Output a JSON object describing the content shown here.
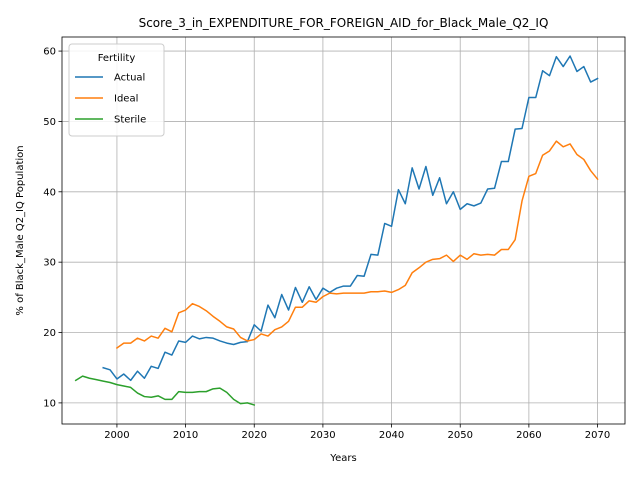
{
  "chart_data": {
    "type": "line",
    "title": "Score_3_in_EXPENDITURE_FOR_FOREIGN_AID_for_Black_Male_Q2_IQ",
    "xlabel": "Years",
    "ylabel": "% of Black_Male Q2_IQ Population",
    "xlim": [
      1992,
      2074
    ],
    "ylim": [
      7,
      62
    ],
    "xticks": [
      2000,
      2010,
      2020,
      2030,
      2040,
      2050,
      2060,
      2070
    ],
    "yticks": [
      10,
      20,
      30,
      40,
      50,
      60
    ],
    "grid": true,
    "legend": {
      "title": "Fertility",
      "placement": "top-left"
    },
    "series": [
      {
        "name": "Actual",
        "color": "#1f77b4",
        "x": [
          1998,
          1999,
          2000,
          2001,
          2002,
          2003,
          2004,
          2005,
          2006,
          2007,
          2008,
          2009,
          2010,
          2011,
          2012,
          2013,
          2014,
          2015,
          2016,
          2017,
          2018,
          2019,
          2020,
          2021,
          2022,
          2023,
          2024,
          2025,
          2026,
          2027,
          2028,
          2029,
          2030,
          2031,
          2032,
          2033,
          2034,
          2035,
          2036,
          2037,
          2038,
          2039,
          2040,
          2041,
          2042,
          2043,
          2044,
          2045,
          2046,
          2047,
          2048,
          2049,
          2050,
          2051,
          2052,
          2053,
          2054,
          2055,
          2056,
          2057,
          2058,
          2059,
          2060,
          2061,
          2062,
          2063,
          2064,
          2065,
          2066,
          2067,
          2068,
          2069,
          2070
        ],
        "values": [
          15.0,
          14.7,
          13.4,
          14.1,
          13.2,
          14.5,
          13.5,
          15.2,
          14.9,
          17.2,
          16.8,
          18.8,
          18.6,
          19.5,
          19.1,
          19.3,
          19.2,
          18.8,
          18.5,
          18.3,
          18.6,
          18.7,
          21.1,
          20.2,
          23.9,
          22.1,
          25.4,
          23.2,
          26.4,
          24.3,
          26.5,
          24.7,
          26.3,
          25.7,
          26.3,
          26.6,
          26.6,
          28.1,
          28.0,
          31.1,
          31.0,
          35.5,
          35.1,
          40.3,
          38.3,
          43.4,
          40.4,
          43.6,
          39.5,
          42.0,
          38.3,
          40.0,
          37.5,
          38.3,
          38.0,
          38.4,
          40.4,
          40.5,
          44.3,
          44.3,
          48.9,
          49.0,
          53.4,
          53.4,
          57.2,
          56.5,
          59.2,
          57.8,
          59.3,
          57.1,
          57.8,
          55.6,
          56.1
        ]
      },
      {
        "name": "Ideal",
        "color": "#ff7f0e",
        "x": [
          2000,
          2001,
          2002,
          2003,
          2004,
          2005,
          2006,
          2007,
          2008,
          2009,
          2010,
          2011,
          2012,
          2013,
          2014,
          2015,
          2016,
          2017,
          2018,
          2019,
          2020,
          2021,
          2022,
          2023,
          2024,
          2025,
          2026,
          2027,
          2028,
          2029,
          2030,
          2031,
          2032,
          2033,
          2034,
          2035,
          2036,
          2037,
          2038,
          2039,
          2040,
          2041,
          2042,
          2043,
          2044,
          2045,
          2046,
          2047,
          2048,
          2049,
          2050,
          2051,
          2052,
          2053,
          2054,
          2055,
          2056,
          2057,
          2058,
          2059,
          2060,
          2061,
          2062,
          2063,
          2064,
          2065,
          2066,
          2067,
          2068,
          2069,
          2070
        ],
        "values": [
          17.8,
          18.5,
          18.5,
          19.2,
          18.8,
          19.5,
          19.2,
          20.6,
          20.1,
          22.8,
          23.2,
          24.1,
          23.7,
          23.1,
          22.3,
          21.6,
          20.8,
          20.5,
          19.3,
          18.8,
          19.0,
          19.8,
          19.5,
          20.4,
          20.8,
          21.6,
          23.6,
          23.6,
          24.5,
          24.3,
          25.1,
          25.6,
          25.5,
          25.6,
          25.6,
          25.6,
          25.6,
          25.8,
          25.8,
          25.9,
          25.7,
          26.1,
          26.7,
          28.5,
          29.2,
          30.0,
          30.4,
          30.5,
          31.0,
          30.1,
          31.0,
          30.4,
          31.2,
          31.0,
          31.1,
          31.0,
          31.8,
          31.8,
          33.2,
          38.7,
          42.2,
          42.6,
          45.2,
          45.8,
          47.2,
          46.4,
          46.8,
          45.3,
          44.6,
          43.0,
          41.8
        ]
      },
      {
        "name": "Sterile",
        "color": "#2ca02c",
        "x": [
          1994,
          1995,
          1996,
          1997,
          1998,
          1999,
          2000,
          2001,
          2002,
          2003,
          2004,
          2005,
          2006,
          2007,
          2008,
          2009,
          2010,
          2011,
          2012,
          2013,
          2014,
          2015,
          2016,
          2017,
          2018,
          2019,
          2020
        ],
        "values": [
          13.2,
          13.8,
          13.5,
          13.3,
          13.1,
          12.9,
          12.6,
          12.4,
          12.2,
          11.4,
          10.9,
          10.8,
          11.0,
          10.5,
          10.5,
          11.6,
          11.5,
          11.5,
          11.6,
          11.6,
          12.0,
          12.1,
          11.5,
          10.5,
          9.9,
          10.0,
          9.7
        ]
      }
    ]
  }
}
